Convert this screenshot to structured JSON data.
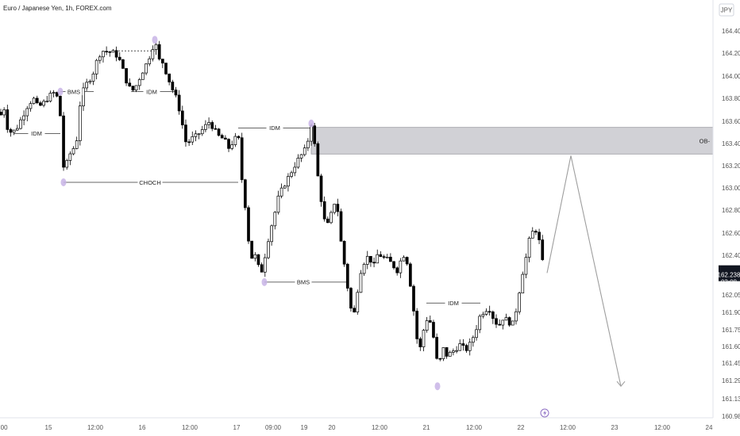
{
  "chart_data": {
    "type": "candlestick",
    "title": "Euro / Japanese Yen, 1h, FOREX.com",
    "currency": "JPY",
    "y_ticks": [
      164.4,
      164.2,
      164.0,
      163.8,
      163.6,
      163.4,
      163.2,
      163.0,
      162.8,
      162.6,
      162.4,
      162.2,
      162.05,
      161.9,
      161.75,
      161.6,
      161.45,
      161.29,
      161.13,
      160.98
    ],
    "y_tick_labels": [
      "164.400",
      "164.200",
      "164.000",
      "163.800",
      "163.600",
      "163.400",
      "163.200",
      "163.000",
      "162.800",
      "162.600",
      "162.400",
      "162.200",
      "162.050",
      "161.900",
      "161.750",
      "161.600",
      "161.450",
      "161.290",
      "161.130",
      "160.980"
    ],
    "x_tick_labels": [
      ":00",
      "15",
      "12:00",
      "16",
      "12:00",
      "17",
      "09:00",
      "19",
      "20",
      "12:00",
      "21",
      "12:00",
      "22",
      "12:00",
      "23",
      "12:00",
      "24"
    ],
    "current_price": "162.238",
    "countdown": "03:08",
    "annotations": {
      "bms_1": "BMS",
      "idm_1": "IDM",
      "idm_2": "IDM",
      "choch": "CHOCH",
      "idm_3": "IDM",
      "bms_2": "BMS",
      "idm_4": "IDM",
      "ob": "OB-"
    },
    "ob_zone": [
      163.305,
      163.545
    ],
    "projection": [
      162.24,
      163.29,
      161.24
    ],
    "colors": {
      "bull": "#ffffff",
      "bear": "#000000",
      "wick": "#000000",
      "zone": "#d1d1d6",
      "marker": "#c8b4e6",
      "projection": "#9e9e9e",
      "price_tag": "#131722"
    }
  }
}
